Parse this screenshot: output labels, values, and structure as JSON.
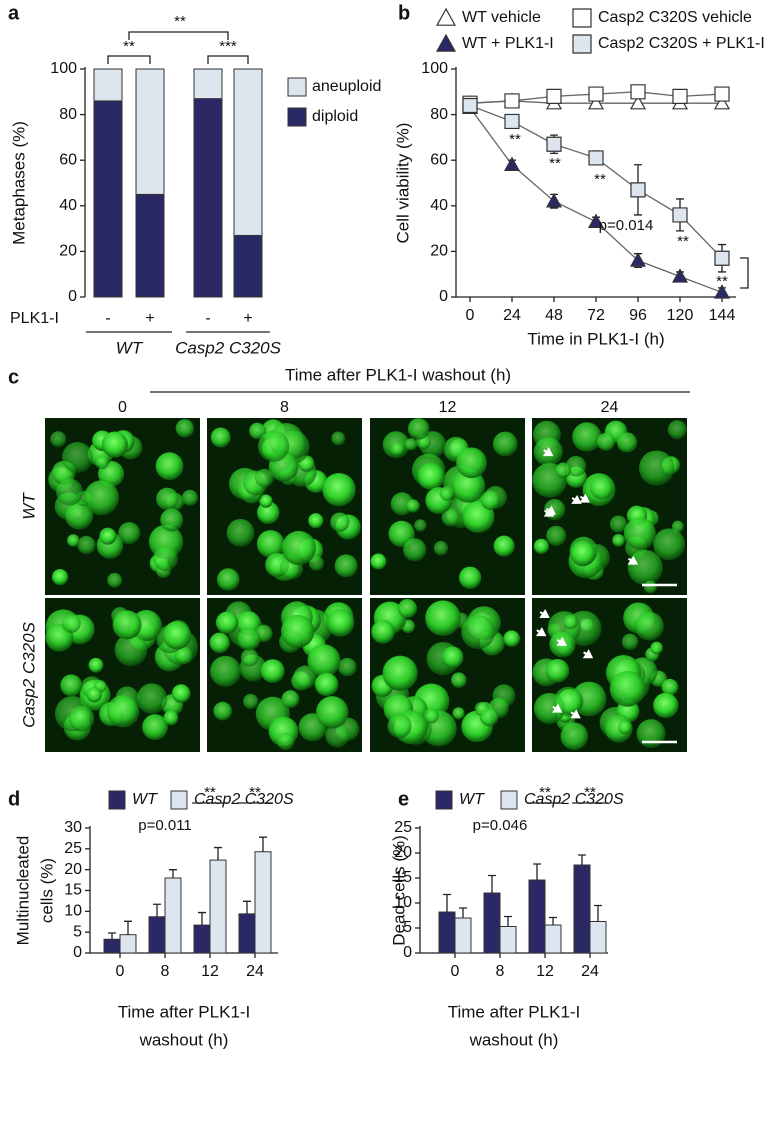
{
  "chart_data": [
    {
      "panel": "a",
      "type": "stacked_bar",
      "ylabel": "Metaphases (%)",
      "ylim": [
        0,
        100
      ],
      "yticks": [
        0,
        20,
        40,
        60,
        80,
        100
      ],
      "categories": [
        "-",
        "+",
        "-",
        "+"
      ],
      "category_axis_label": "PLK1-I",
      "groups": [
        "WT",
        "Casp2 C320S"
      ],
      "series": [
        {
          "name": "diploid",
          "color": "#2a2966",
          "values": [
            86,
            45,
            87,
            27
          ]
        },
        {
          "name": "aneuploid",
          "color": "#dde5ee",
          "values": [
            14,
            55,
            13,
            73
          ]
        }
      ],
      "legend": "right",
      "annotations": [
        "**",
        "**",
        "***"
      ]
    },
    {
      "panel": "b",
      "type": "line",
      "xlabel": "Time in PLK1-I (h)",
      "ylabel": "Cell viability (%)",
      "x": [
        0,
        24,
        48,
        72,
        96,
        120,
        144
      ],
      "xlim": [
        -8,
        152
      ],
      "xticks": [
        0,
        24,
        48,
        72,
        96,
        120,
        144
      ],
      "ylim": [
        0,
        100
      ],
      "yticks": [
        0,
        20,
        40,
        60,
        80,
        100
      ],
      "legend": "top",
      "series": [
        {
          "name": "WT vehicle",
          "marker": "triangle",
          "color": "#ffffff",
          "values": [
            85,
            86,
            85,
            85,
            85,
            85,
            85
          ]
        },
        {
          "name": "Casp2 C320S vehicle",
          "marker": "square",
          "color": "#ffffff",
          "values": [
            85,
            86,
            88,
            89,
            90,
            88,
            89
          ]
        },
        {
          "name": "WT + PLK1-I",
          "marker": "triangle",
          "color": "#2a2966",
          "values": [
            83,
            58,
            42,
            33,
            16,
            9,
            2
          ],
          "errors": [
            2,
            2,
            3,
            2,
            3,
            2,
            2
          ]
        },
        {
          "name": "Casp2 C320S + PLK1-I",
          "marker": "square",
          "color": "#dde5ee",
          "values": [
            84,
            77,
            67,
            61,
            47,
            36,
            17
          ],
          "errors": [
            2,
            3,
            4,
            3,
            11,
            7,
            6
          ]
        }
      ],
      "annotations": [
        "**",
        "**",
        "**",
        "p=0.014",
        "**",
        "**"
      ]
    },
    {
      "panel": "d",
      "type": "grouped_bar",
      "xlabel": [
        "Time after PLK1-I",
        "washout (h)"
      ],
      "ylabel": [
        "Multinucleated",
        "cells (%)"
      ],
      "categories": [
        "0",
        "8",
        "12",
        "24"
      ],
      "ylim": [
        0,
        30
      ],
      "yticks": [
        0,
        5,
        10,
        15,
        20,
        25,
        30
      ],
      "legend": "top",
      "series": [
        {
          "name": "WT",
          "color": "#2a2966",
          "values": [
            3.3,
            8.7,
            6.7,
            9.4
          ],
          "errors": [
            1.5,
            3,
            3,
            3
          ]
        },
        {
          "name": "Casp2 C320S",
          "color": "#dde5ee",
          "values": [
            4.4,
            18,
            22.3,
            24.3
          ],
          "errors": [
            3.2,
            2,
            3,
            3.5
          ]
        }
      ],
      "annotations": [
        "p=0.011",
        "**",
        "**"
      ]
    },
    {
      "panel": "e",
      "type": "grouped_bar",
      "xlabel": [
        "Time after PLK1-I",
        "washout (h)"
      ],
      "ylabel": [
        "Dead cells (%)"
      ],
      "categories": [
        "0",
        "8",
        "12",
        "24"
      ],
      "ylim": [
        0,
        25
      ],
      "yticks": [
        0,
        5,
        10,
        15,
        20,
        25
      ],
      "legend": "top",
      "series": [
        {
          "name": "WT",
          "color": "#2a2966",
          "values": [
            8.2,
            12,
            14.6,
            17.6
          ],
          "errors": [
            3.5,
            3.5,
            3.2,
            2
          ]
        },
        {
          "name": "Casp2 C320S",
          "color": "#dde5ee",
          "values": [
            7,
            5.3,
            5.6,
            6.3
          ],
          "errors": [
            2,
            2,
            1.5,
            3.2
          ]
        }
      ],
      "annotations": [
        "p=0.046",
        "**",
        "**"
      ]
    }
  ],
  "image_panel": {
    "panel": "c",
    "title": "Time after PLK1-I washout (h)",
    "columns": [
      "0",
      "8",
      "12",
      "24"
    ],
    "rows": [
      "WT",
      "Casp2 C320S"
    ]
  }
}
